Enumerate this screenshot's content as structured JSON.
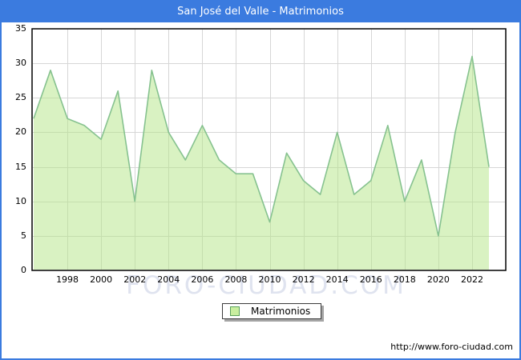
{
  "title": "San José del Valle - Matrimonios",
  "legend": {
    "label": "Matrimonios",
    "swatch_fill": "#c9ef9f",
    "swatch_border": "#5aa05a"
  },
  "footer": {
    "url": "http://www.foro-ciudad.com"
  },
  "watermark": "FORO-CIUDAD.COM",
  "colors": {
    "frame_border": "#3b7bdf",
    "titlebar_bg": "#3b7bdf",
    "titlebar_text": "#ffffff",
    "area_fill": "#daf2c1",
    "area_line": "#86c28f",
    "gridline": "#d6d6d6",
    "plot_border": "#000000"
  },
  "chart_data": {
    "type": "area",
    "title": "San José del Valle - Matrimonios",
    "series_name": "Matrimonios",
    "x": [
      1996,
      1997,
      1998,
      1999,
      2000,
      2001,
      2002,
      2003,
      2004,
      2005,
      2006,
      2007,
      2008,
      2009,
      2010,
      2011,
      2012,
      2013,
      2014,
      2015,
      2016,
      2017,
      2018,
      2019,
      2020,
      2021,
      2022,
      2023
    ],
    "values": [
      22,
      29,
      22,
      21,
      19,
      26,
      10,
      29,
      20,
      16,
      21,
      16,
      14,
      14,
      7,
      17,
      13,
      11,
      20,
      11,
      13,
      21,
      10,
      16,
      5,
      20,
      31,
      15
    ],
    "xlabel": "",
    "ylabel": "",
    "ylim": [
      0,
      35
    ],
    "yticks": [
      0,
      5,
      10,
      15,
      20,
      25,
      30,
      35
    ],
    "xticks": [
      1998,
      2000,
      2002,
      2004,
      2006,
      2008,
      2010,
      2012,
      2014,
      2016,
      2018,
      2020,
      2022
    ],
    "grid": true,
    "legend_position": "bottom-center"
  }
}
